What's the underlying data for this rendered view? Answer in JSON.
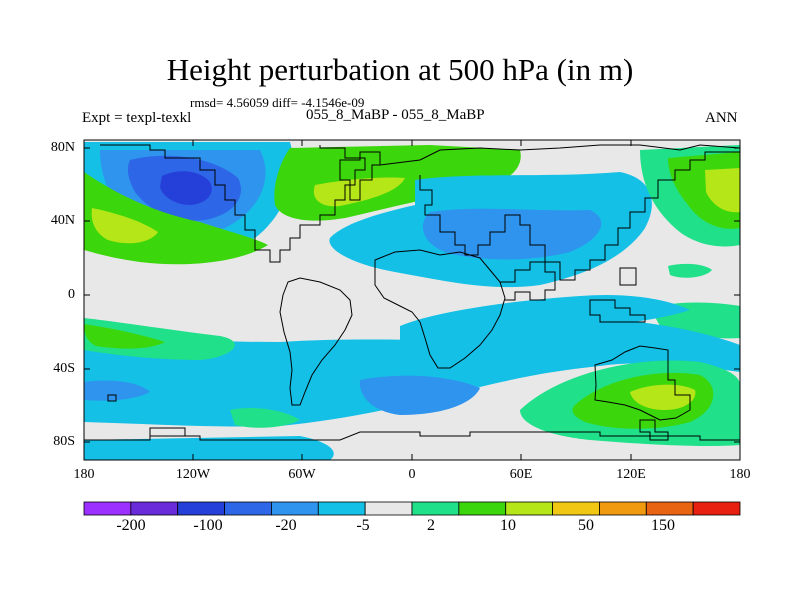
{
  "title": "Height perturbation at 500 hPa (in m)",
  "stats": "rmsd= 4.56059 diff= -4.1546e-09",
  "subtitle": "055_8_MaBP - 055_8_MaBP",
  "experiment": "Expt = texpl-texkl",
  "season": "ANN",
  "y_axis": {
    "labels": [
      "80N",
      "40N",
      "0",
      "40S",
      "80S"
    ]
  },
  "x_axis": {
    "labels": [
      "180",
      "120W",
      "60W",
      "0",
      "60E",
      "120E",
      "180"
    ]
  },
  "colorbar": {
    "colors": [
      "#9b30ff",
      "#6a2bdb",
      "#2440d8",
      "#2d66e6",
      "#2f94ee",
      "#14c0e6",
      "#e8e8e8",
      "#20e08a",
      "#3cd60c",
      "#b4e618",
      "#f0c814",
      "#f09a10",
      "#e86412",
      "#e82010"
    ],
    "labels": [
      "-200",
      "-100",
      "-20",
      "-5",
      "2",
      "10",
      "50",
      "150"
    ]
  },
  "map_colors": {
    "background": "#e8e8e8",
    "light_blue": "#14c0e6",
    "mid_blue": "#2f94ee",
    "blue": "#2d66e6",
    "dark_blue": "#2440d8",
    "teal_green": "#20e08a",
    "green": "#3cd60c",
    "yellow_green": "#b4e618"
  }
}
